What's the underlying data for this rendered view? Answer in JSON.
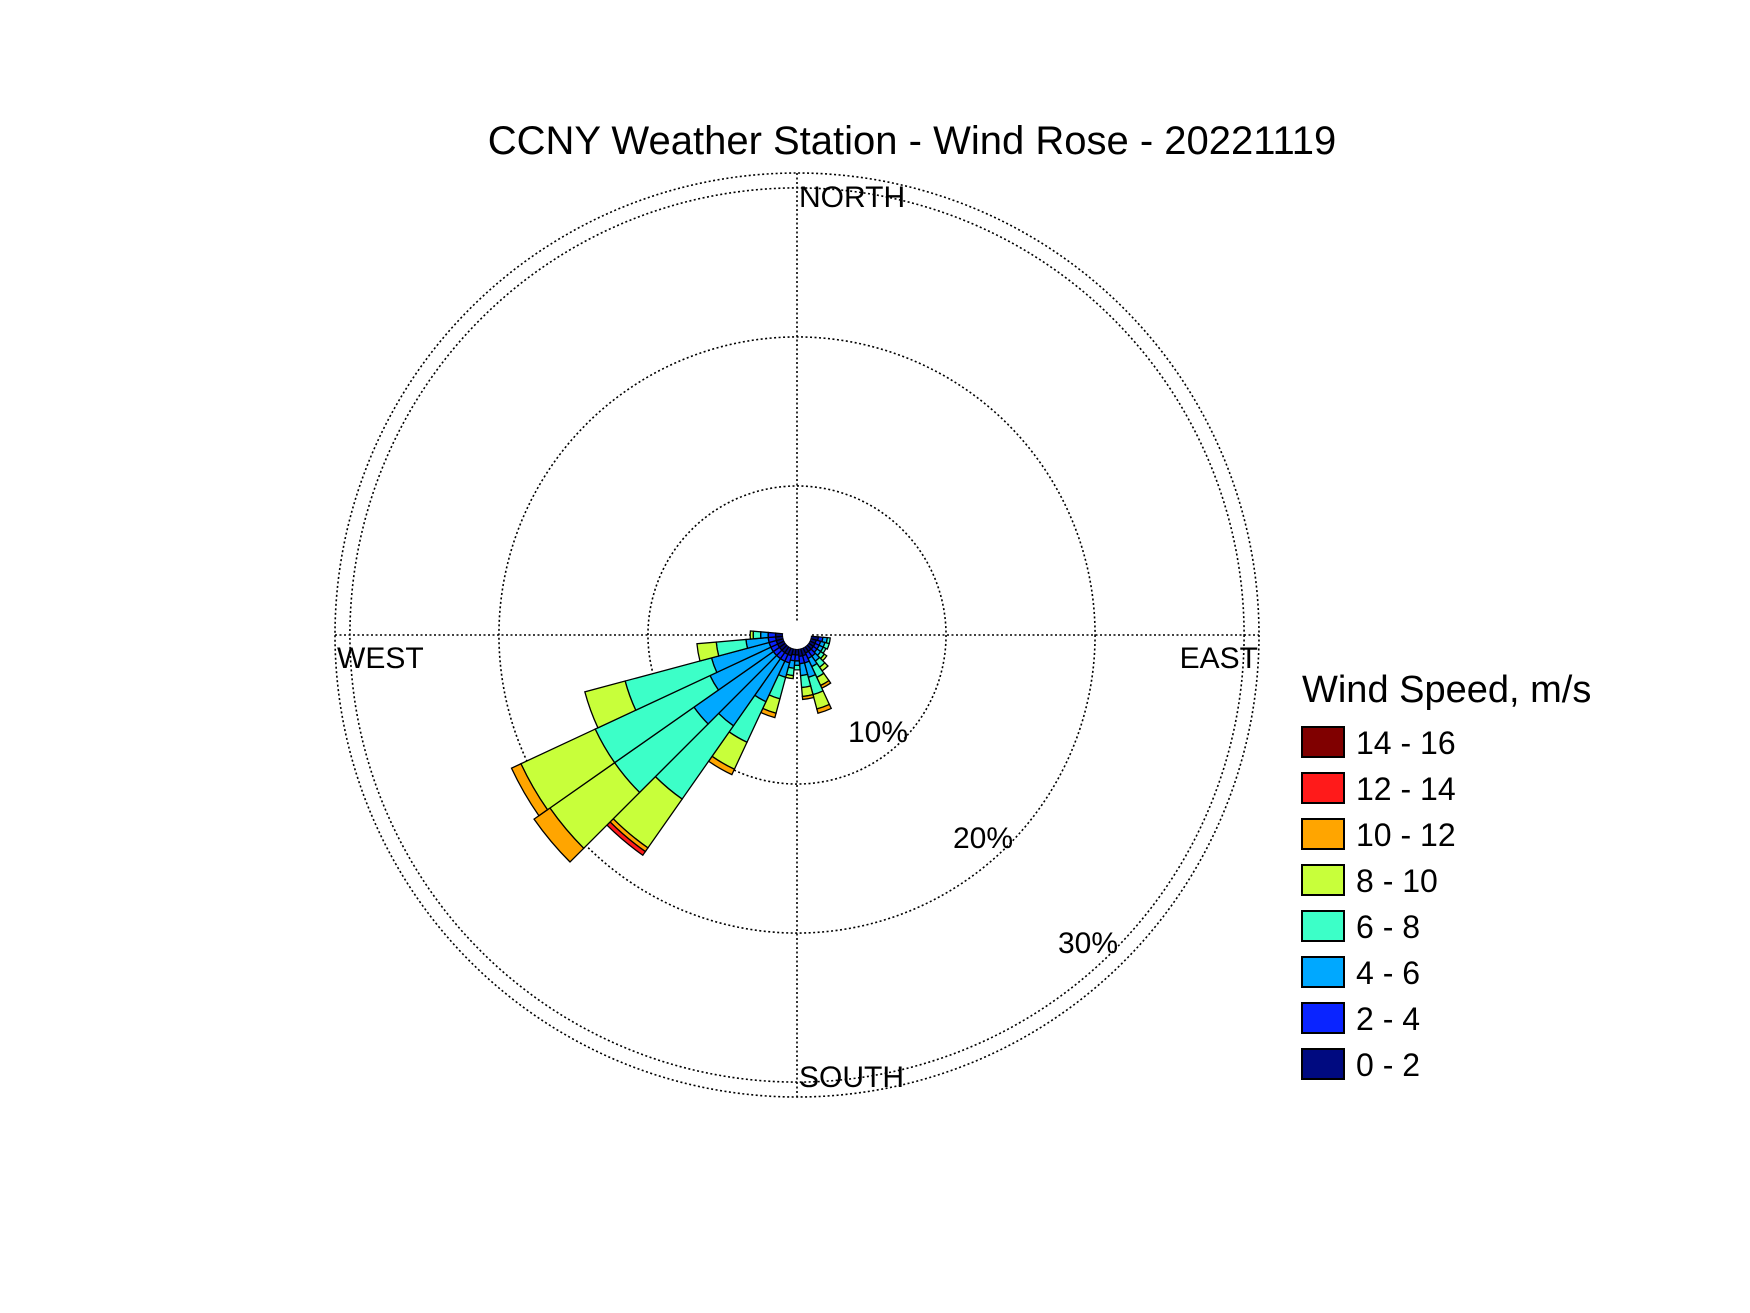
{
  "chart_data": {
    "type": "windrose",
    "title": "CCNY Weather Station - Wind Rose - 20221119",
    "directions": [
      "NORTH",
      "EAST",
      "SOUTH",
      "WEST"
    ],
    "ring_labels": [
      "10%",
      "20%",
      "30%"
    ],
    "rings": [
      10,
      20,
      30
    ],
    "r_max": 31,
    "legend": {
      "title": "Wind Speed, m/s",
      "bins": [
        {
          "label": "14 - 16",
          "color": "#800000"
        },
        {
          "label": "12 - 14",
          "color": "#ff1a1a"
        },
        {
          "label": "10 - 12",
          "color": "#ffa500"
        },
        {
          "label": "8 - 10",
          "color": "#c8ff3a"
        },
        {
          "label": "6 - 8",
          "color": "#3cffc8"
        },
        {
          "label": "4 - 6",
          "color": "#00a8ff"
        },
        {
          "label": "2 - 4",
          "color": "#0a24ff"
        },
        {
          "label": "0 - 2",
          "color": "#000a80"
        }
      ]
    },
    "bin_order_inner_to_outer": [
      "0 - 2",
      "2 - 4",
      "4 - 6",
      "6 - 8",
      "8 - 10",
      "10 - 12",
      "12 - 14",
      "14 - 16"
    ],
    "sector_width_deg": 10,
    "sectors": [
      {
        "dir": 100,
        "values": [
          0.5,
          0.3,
          0.3,
          0.2,
          0.0,
          0.0,
          0.0,
          0.0
        ]
      },
      {
        "dir": 110,
        "values": [
          0.4,
          0.3,
          0.3,
          0.3,
          0.0,
          0.0,
          0.0,
          0.0
        ]
      },
      {
        "dir": 120,
        "values": [
          0.4,
          0.3,
          0.3,
          0.2,
          0.0,
          0.0,
          0.0,
          0.0
        ]
      },
      {
        "dir": 130,
        "values": [
          0.4,
          0.3,
          0.3,
          0.3,
          0.2,
          0.0,
          0.0,
          0.0
        ]
      },
      {
        "dir": 140,
        "values": [
          0.4,
          0.4,
          0.4,
          0.5,
          0.3,
          0.0,
          0.0,
          0.0
        ]
      },
      {
        "dir": 150,
        "values": [
          0.4,
          0.4,
          0.6,
          0.8,
          0.6,
          0.2,
          0.0,
          0.0
        ]
      },
      {
        "dir": 160,
        "values": [
          0.5,
          0.5,
          1.0,
          1.2,
          1.0,
          0.3,
          0.0,
          0.0
        ]
      },
      {
        "dir": 170,
        "values": [
          0.5,
          0.5,
          0.8,
          0.8,
          0.6,
          0.2,
          0.0,
          0.0
        ]
      },
      {
        "dir": 180,
        "values": [
          0.4,
          0.4,
          0.3,
          0.3,
          0.0,
          0.0,
          0.0,
          0.0
        ]
      },
      {
        "dir": 190,
        "values": [
          0.4,
          0.4,
          0.5,
          0.5,
          0.2,
          0.0,
          0.0,
          0.0
        ]
      },
      {
        "dir": 200,
        "values": [
          0.5,
          0.5,
          1.0,
          1.5,
          1.0,
          0.3,
          0.0,
          0.0
        ]
      },
      {
        "dir": 210,
        "values": [
          0.5,
          0.5,
          3.0,
          3.0,
          2.0,
          0.4,
          0.0,
          0.0
        ]
      },
      {
        "dir": 220,
        "values": [
          0.5,
          0.5,
          5.5,
          6.0,
          4.0,
          0.3,
          0.3,
          0.0
        ]
      },
      {
        "dir": 230,
        "values": [
          0.5,
          0.5,
          6.5,
          6.5,
          5.3,
          1.3,
          0.0,
          0.0
        ]
      },
      {
        "dir": 240,
        "values": [
          0.5,
          0.5,
          4.5,
          8.5,
          5.5,
          0.7,
          0.0,
          0.0
        ]
      },
      {
        "dir": 250,
        "values": [
          0.5,
          0.5,
          4.0,
          6.0,
          2.8,
          0.0,
          0.0,
          0.0
        ]
      },
      {
        "dir": 260,
        "values": [
          0.5,
          0.5,
          1.5,
          2.0,
          1.3,
          0.0,
          0.0,
          0.0
        ]
      },
      {
        "dir": 270,
        "values": [
          0.5,
          0.5,
          0.5,
          0.5,
          0.2,
          0.0,
          0.0,
          0.0
        ]
      }
    ]
  }
}
